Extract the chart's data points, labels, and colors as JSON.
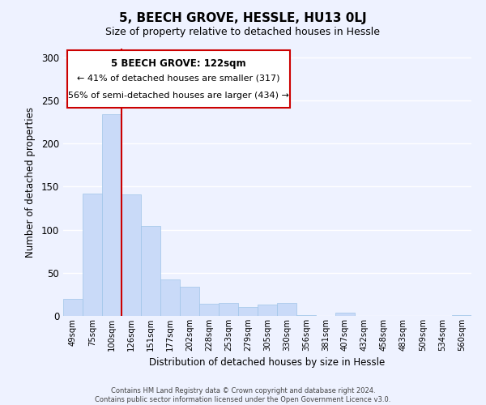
{
  "title": "5, BEECH GROVE, HESSLE, HU13 0LJ",
  "subtitle": "Size of property relative to detached houses in Hessle",
  "xlabel": "Distribution of detached houses by size in Hessle",
  "ylabel": "Number of detached properties",
  "bar_labels": [
    "49sqm",
    "75sqm",
    "100sqm",
    "126sqm",
    "151sqm",
    "177sqm",
    "202sqm",
    "228sqm",
    "253sqm",
    "279sqm",
    "305sqm",
    "330sqm",
    "356sqm",
    "381sqm",
    "407sqm",
    "432sqm",
    "458sqm",
    "483sqm",
    "509sqm",
    "534sqm",
    "560sqm"
  ],
  "bar_values": [
    20,
    142,
    234,
    141,
    104,
    42,
    34,
    14,
    15,
    10,
    13,
    15,
    1,
    0,
    4,
    0,
    0,
    0,
    0,
    0,
    1
  ],
  "bar_color": "#c9daf8",
  "bar_edge_color": "#9fc5e8",
  "vline_x": 2.5,
  "vline_color": "#cc0000",
  "ylim": [
    0,
    310
  ],
  "yticks": [
    0,
    50,
    100,
    150,
    200,
    250,
    300
  ],
  "annotation_title": "5 BEECH GROVE: 122sqm",
  "annotation_line1": "← 41% of detached houses are smaller (317)",
  "annotation_line2": "56% of semi-detached houses are larger (434) →",
  "footer_line1": "Contains HM Land Registry data © Crown copyright and database right 2024.",
  "footer_line2": "Contains public sector information licensed under the Open Government Licence v3.0.",
  "bg_color": "#eef2ff",
  "plot_bg_color": "#eef2ff",
  "grid_color": "#ffffff",
  "title_fontsize": 11,
  "subtitle_fontsize": 9
}
